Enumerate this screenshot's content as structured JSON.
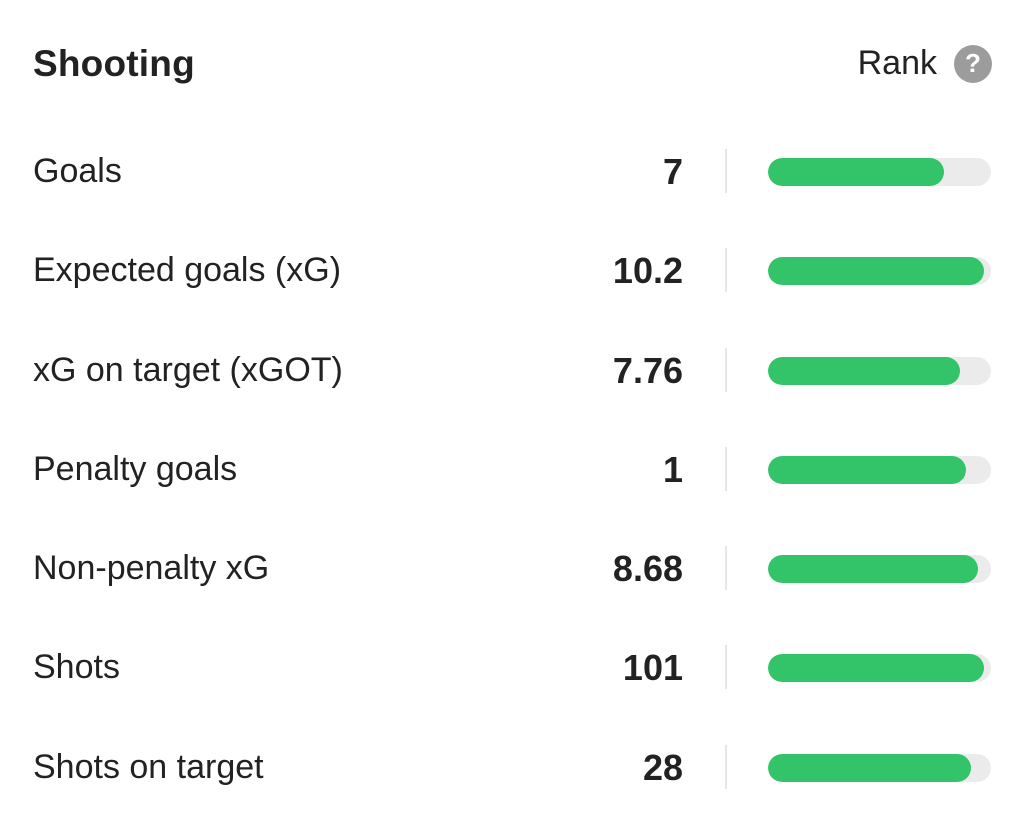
{
  "section": {
    "title": "Shooting",
    "rank_label": "Rank",
    "help_icon": "question-mark-icon",
    "help_glyph": "?"
  },
  "colors": {
    "bar_fill": "#33c46a",
    "bar_track": "#ebebeb",
    "help_icon_bg": "#9c9c9c"
  },
  "rows": [
    {
      "label": "Goals",
      "value": "7",
      "rank_fraction": 0.79
    },
    {
      "label": "Expected goals (xG)",
      "value": "10.2",
      "rank_fraction": 0.97
    },
    {
      "label": "xG on target (xGOT)",
      "value": "7.76",
      "rank_fraction": 0.86
    },
    {
      "label": "Penalty goals",
      "value": "1",
      "rank_fraction": 0.89
    },
    {
      "label": "Non-penalty xG",
      "value": "8.68",
      "rank_fraction": 0.94
    },
    {
      "label": "Shots",
      "value": "101",
      "rank_fraction": 0.97
    },
    {
      "label": "Shots on target",
      "value": "28",
      "rank_fraction": 0.91
    }
  ]
}
